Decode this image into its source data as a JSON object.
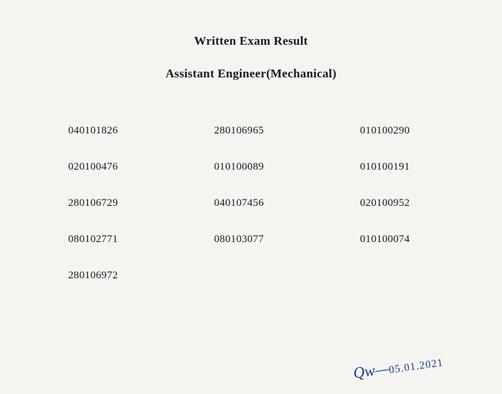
{
  "header": {
    "title": "Written Exam Result",
    "subtitle": "Assistant Engineer(Mechanical)"
  },
  "results": {
    "rows": [
      {
        "c0": "040101826",
        "c1": "280106965",
        "c2": "010100290"
      },
      {
        "c0": "020100476",
        "c1": "010100089",
        "c2": "010100191"
      },
      {
        "c0": "280106729",
        "c1": "040107456",
        "c2": "020100952"
      },
      {
        "c0": "080102771",
        "c1": "080103077",
        "c2": "010100074"
      },
      {
        "c0": "280106972",
        "c1": "",
        "c2": ""
      }
    ]
  },
  "signature": {
    "mark": "Qw—",
    "date": "05.01.2021"
  },
  "styling": {
    "background_color": "#f4f5f1",
    "text_color": "#1a1a1a",
    "signature_color": "#1e3a8a",
    "title_fontsize": 17,
    "cell_fontsize": 15,
    "font_family": "Georgia, Times New Roman, serif"
  }
}
